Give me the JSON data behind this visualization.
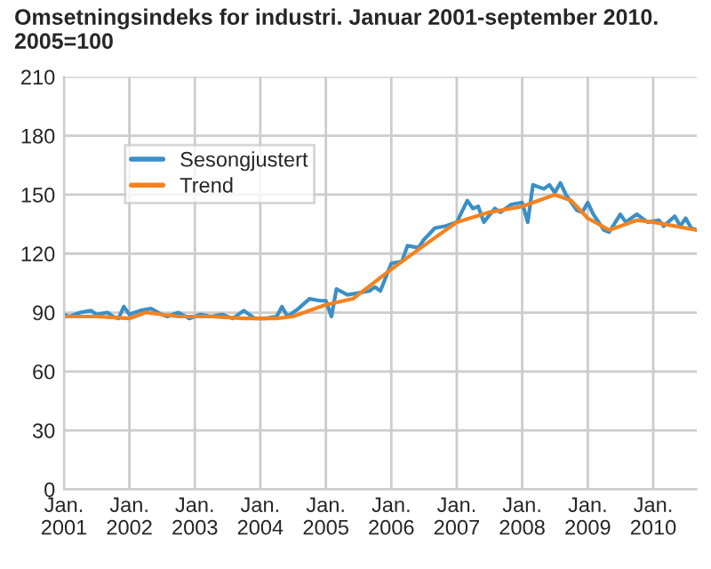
{
  "chart_data": {
    "type": "line",
    "title": "Omsetningsindeks for industri. Januar 2001-september 2010.\n2005=100",
    "series": [
      {
        "name": "Sesongjustert",
        "color": "#3a8fc7",
        "x": [
          "2001-01",
          "2001-02",
          "2001-04",
          "2001-06",
          "2001-07",
          "2001-09",
          "2001-10",
          "2001-11",
          "2001-12",
          "2002-01",
          "2002-03",
          "2002-05",
          "2002-07",
          "2002-08",
          "2002-10",
          "2002-12",
          "2003-02",
          "2003-04",
          "2003-06",
          "2003-08",
          "2003-10",
          "2003-12",
          "2004-02",
          "2004-04",
          "2004-05",
          "2004-06",
          "2004-08",
          "2004-10",
          "2004-12",
          "2005-01",
          "2005-02",
          "2005-03",
          "2005-05",
          "2005-07",
          "2005-09",
          "2005-10",
          "2005-11",
          "2006-01",
          "2006-03",
          "2006-04",
          "2006-06",
          "2006-07",
          "2006-09",
          "2006-11",
          "2007-01",
          "2007-03",
          "2007-04",
          "2007-05",
          "2007-06",
          "2007-08",
          "2007-09",
          "2007-11",
          "2008-01",
          "2008-02",
          "2008-03",
          "2008-05",
          "2008-06",
          "2008-07",
          "2008-08",
          "2008-09",
          "2008-11",
          "2008-12",
          "2009-01",
          "2009-02",
          "2009-04",
          "2009-05",
          "2009-07",
          "2009-08",
          "2009-10",
          "2009-12",
          "2010-02",
          "2010-03",
          "2010-05",
          "2010-06",
          "2010-07",
          "2010-08",
          "2010-09"
        ],
        "values": [
          89,
          88,
          90,
          91,
          89,
          90,
          88,
          87,
          93,
          89,
          91,
          92,
          89,
          88,
          90,
          87,
          89,
          88,
          89,
          87,
          91,
          87,
          87,
          88,
          93,
          88,
          92,
          97,
          96,
          96,
          88,
          102,
          99,
          100,
          101,
          103,
          101,
          115,
          116,
          124,
          123,
          127,
          133,
          134,
          136,
          147,
          143,
          144,
          136,
          143,
          141,
          145,
          146,
          136,
          155,
          153,
          155,
          151,
          156,
          150,
          142,
          141,
          146,
          140,
          132,
          131,
          140,
          136,
          140,
          136,
          137,
          134,
          139,
          134,
          138,
          133,
          132
        ]
      },
      {
        "name": "Trend",
        "color": "#f5821f",
        "x": [
          "2001-01",
          "2001-07",
          "2002-01",
          "2002-04",
          "2002-10",
          "2003-04",
          "2003-10",
          "2004-04",
          "2004-07",
          "2005-01",
          "2005-06",
          "2006-01",
          "2006-07",
          "2007-01",
          "2007-07",
          "2008-01",
          "2008-07",
          "2008-10",
          "2009-01",
          "2009-05",
          "2009-10",
          "2010-01",
          "2010-09"
        ],
        "values": [
          88,
          88,
          87,
          90,
          88,
          88,
          87,
          87,
          88,
          94,
          97,
          112,
          124,
          136,
          141,
          144,
          150,
          147,
          138,
          132,
          137,
          136,
          132
        ]
      }
    ],
    "xlim": [
      "2001-01",
      "2010-09"
    ],
    "xticks": [
      {
        "value": "2001-01",
        "label": "Jan.\n2001"
      },
      {
        "value": "2002-01",
        "label": "Jan.\n2002"
      },
      {
        "value": "2003-01",
        "label": "Jan.\n2003"
      },
      {
        "value": "2004-01",
        "label": "Jan.\n2004"
      },
      {
        "value": "2005-01",
        "label": "Jan.\n2005"
      },
      {
        "value": "2006-01",
        "label": "Jan.\n2006"
      },
      {
        "value": "2007-01",
        "label": "Jan.\n2007"
      },
      {
        "value": "2008-01",
        "label": "Jan.\n2008"
      },
      {
        "value": "2009-01",
        "label": "Jan.\n2009"
      },
      {
        "value": "2010-01",
        "label": "Jan.\n2010"
      }
    ],
    "ylim": [
      0,
      210
    ],
    "yticks": [
      0,
      30,
      60,
      90,
      120,
      150,
      180,
      210
    ],
    "grid": true,
    "legend": "top left",
    "line_style": "solid",
    "marker": "none"
  }
}
